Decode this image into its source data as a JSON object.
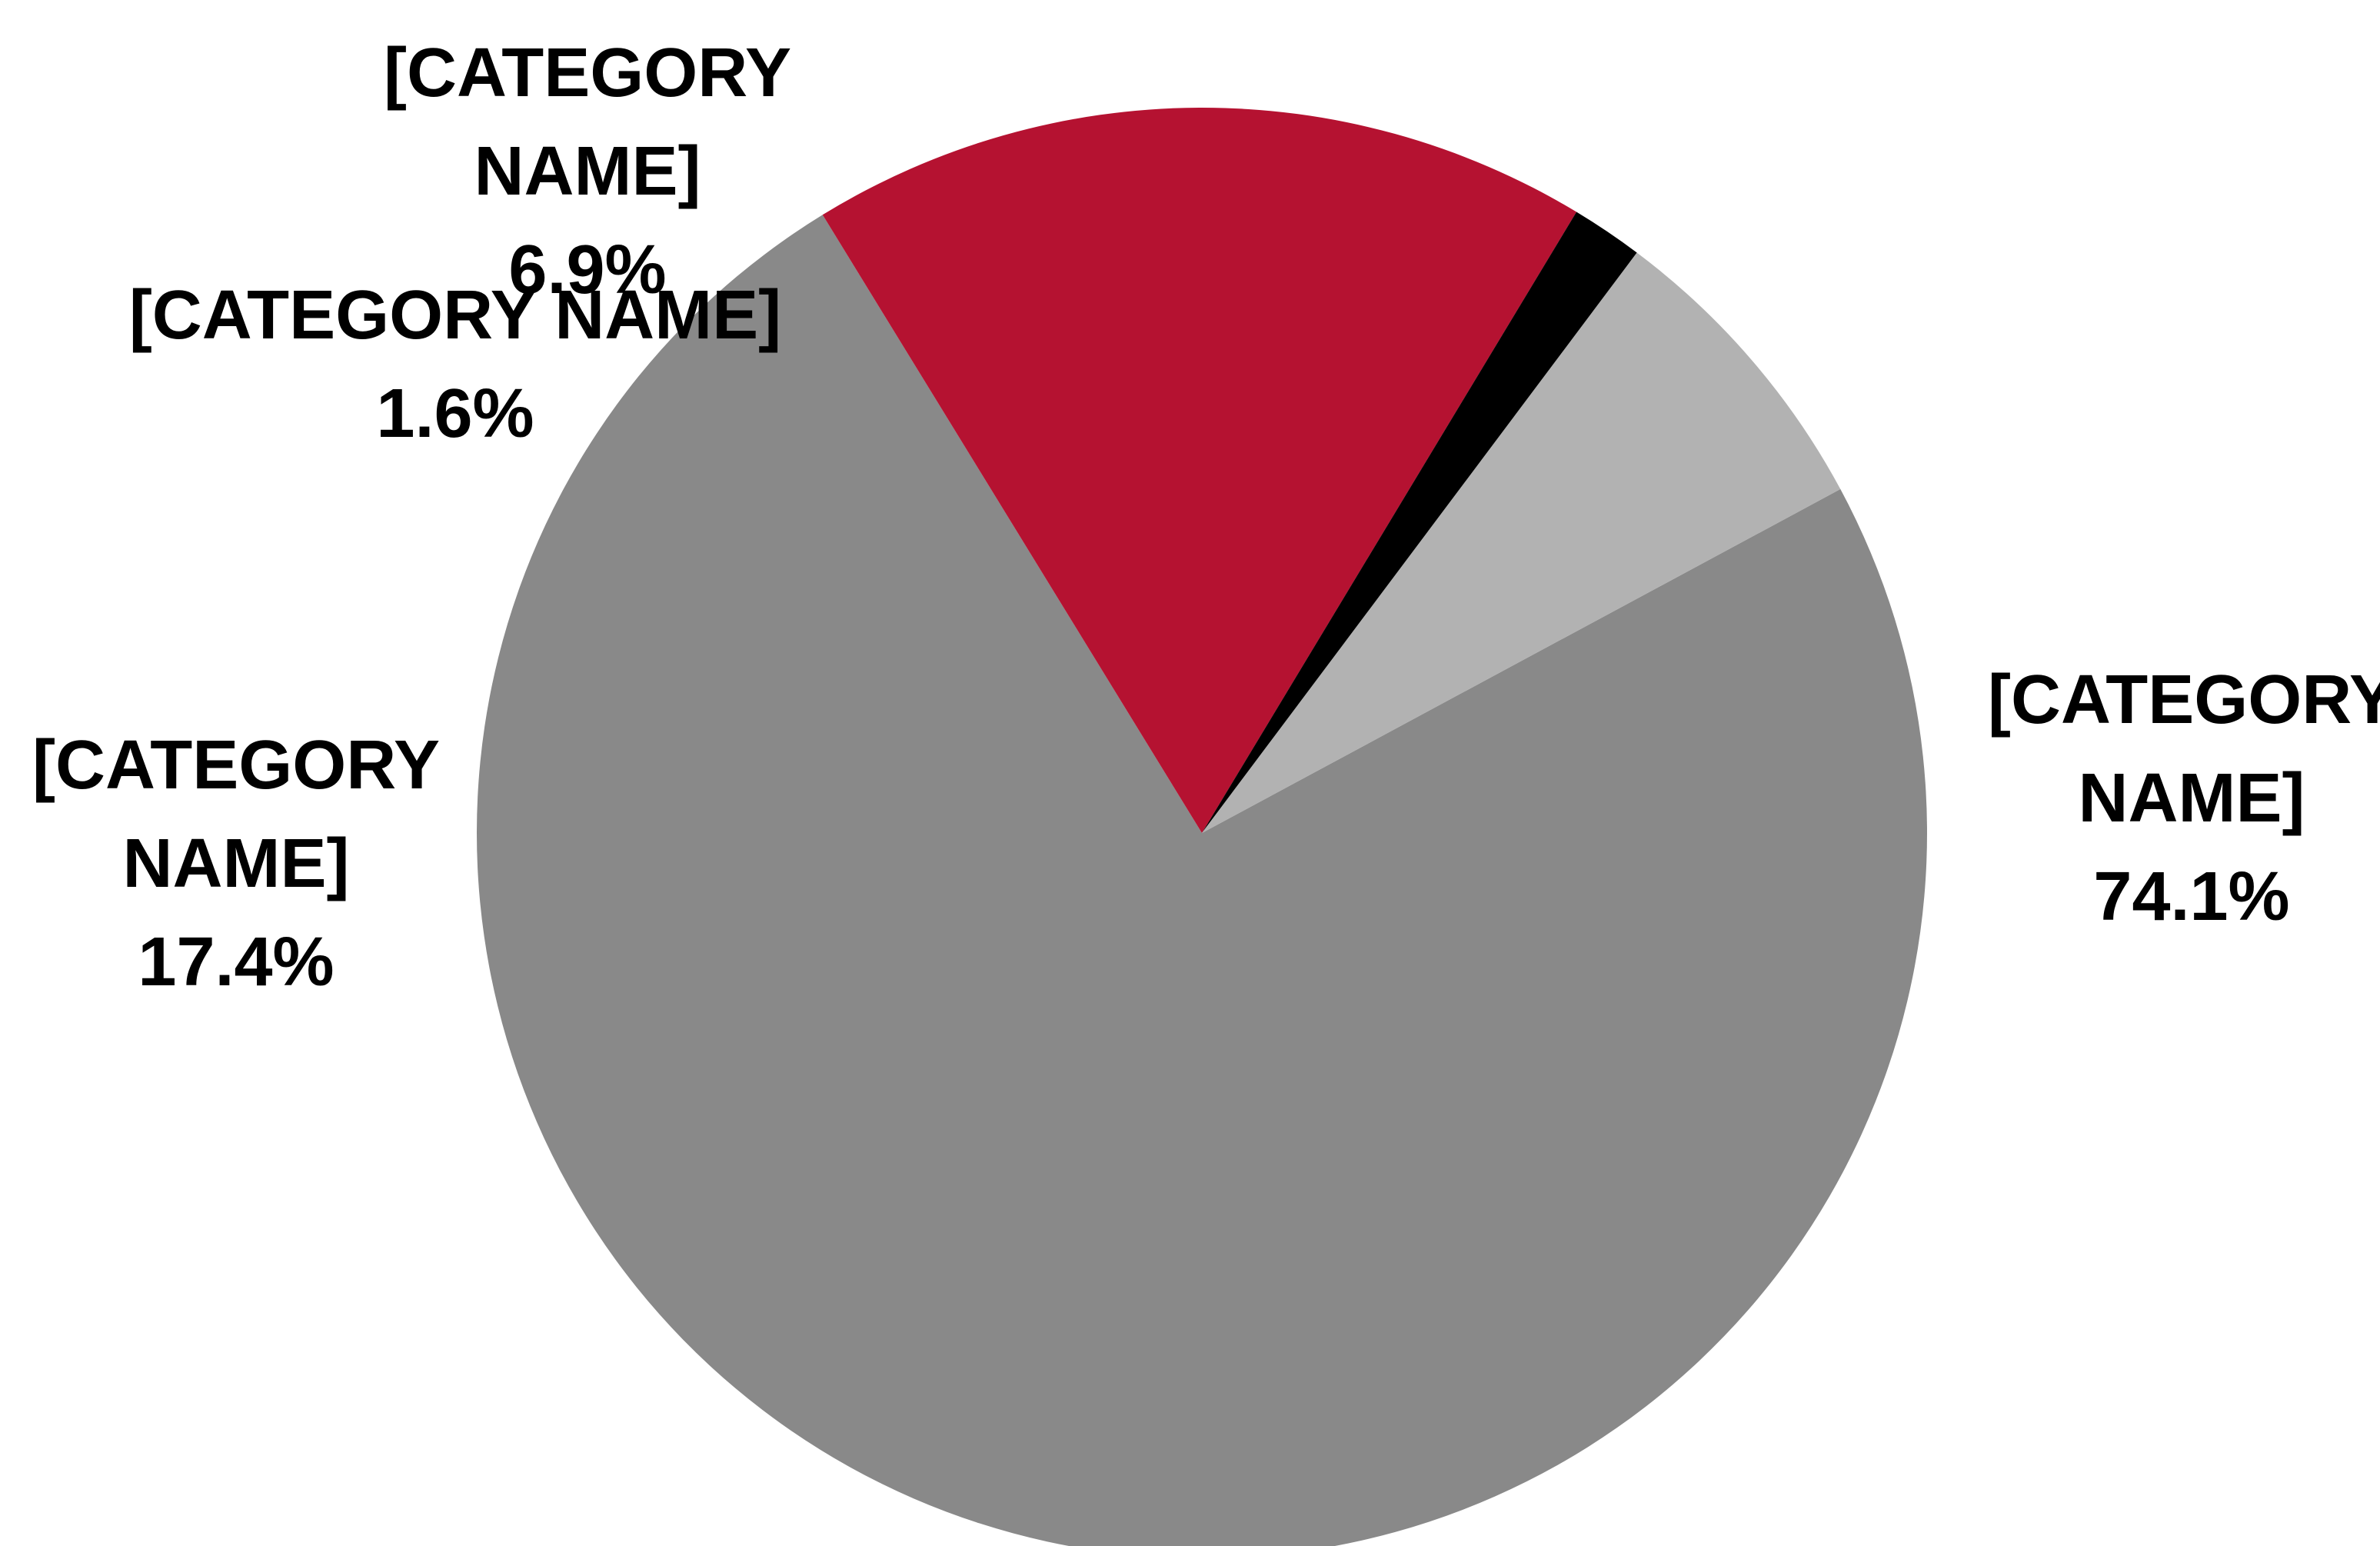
{
  "chart_data": {
    "type": "pie",
    "title": "",
    "slices": [
      {
        "label": "[CATEGORY NAME]",
        "value": 74.1,
        "value_label": "74.1%",
        "color": "#898989"
      },
      {
        "label": "[CATEGORY NAME]",
        "value": 17.4,
        "value_label": "17.4%",
        "color": "#B51231"
      },
      {
        "label": "[CATEGORY NAME]",
        "value": 1.6,
        "value_label": "1.6%",
        "color": "#000000"
      },
      {
        "label": "[CATEGORY NAME]",
        "value": 6.9,
        "value_label": "6.9%",
        "color": "#B2B2B2"
      }
    ],
    "start_angle_deg": -28.3,
    "direction": "clockwise",
    "legend": "none"
  }
}
